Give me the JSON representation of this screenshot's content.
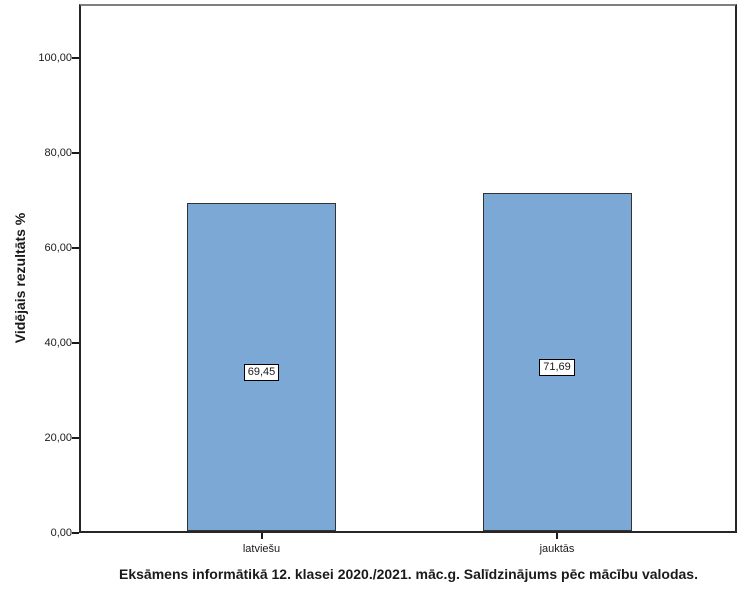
{
  "chart_data": {
    "type": "bar",
    "categories": [
      "latviešu",
      "jauktās"
    ],
    "values": [
      69.45,
      71.69
    ],
    "value_labels": [
      "69,45",
      "71,69"
    ],
    "title": "Eksāmens informātikā 12. klasei 2020./2021. māc.g. Salīdzinājums pēc mācību valodas.",
    "xlabel": "",
    "ylabel": "Vidējais rezultāts %",
    "ylim": [
      0,
      111.4
    ],
    "yticks": [
      0,
      20,
      40,
      60,
      80,
      100
    ],
    "ytick_labels": [
      "0,00",
      "20,00",
      "40,00",
      "60,00",
      "80,00",
      "100,00"
    ],
    "grid": false,
    "legend": null,
    "colors": {
      "bar_fill": "#7CA8D6",
      "bar_border": "#333333",
      "frame_border": "#262626",
      "frame_top_border": "#7F7F7F",
      "value_box_bg": "#FFFFFF",
      "value_box_border": "#000000",
      "text": "#1A1A1A",
      "background": "#FFFFFF"
    }
  }
}
